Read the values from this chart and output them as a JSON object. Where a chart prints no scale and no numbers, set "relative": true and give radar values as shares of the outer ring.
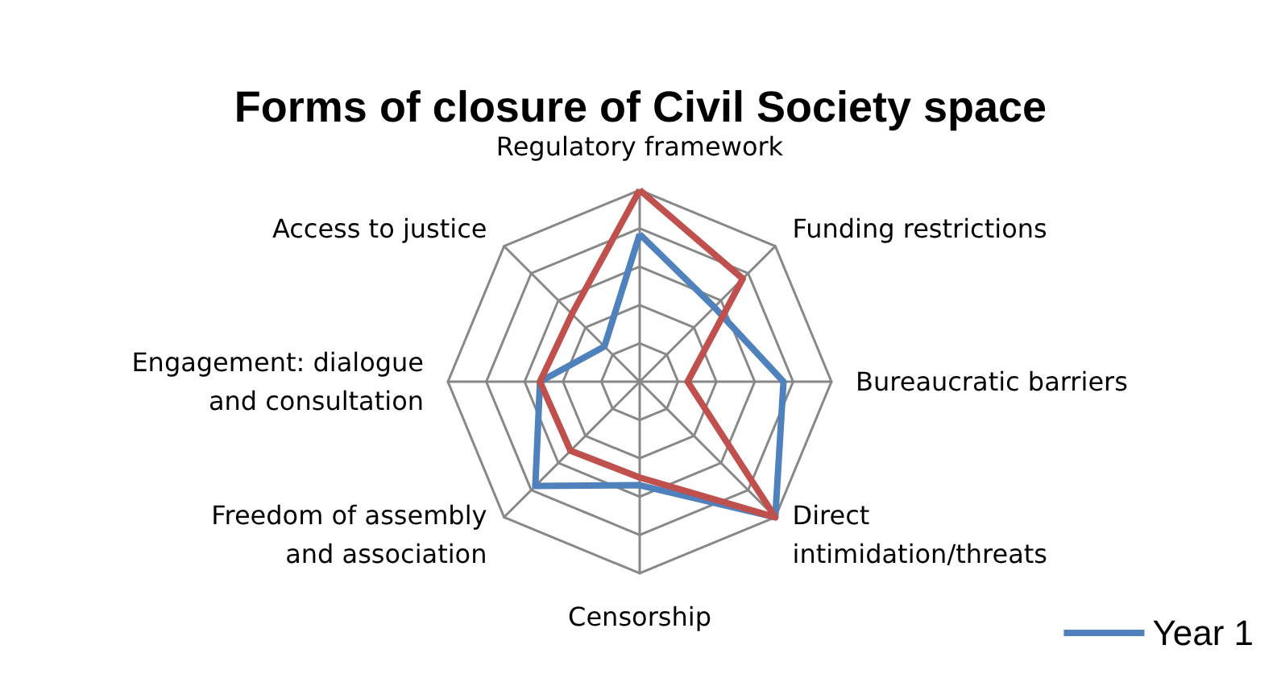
{
  "chart_data": {
    "type": "radar",
    "title": "Forms of closure of Civil Society space",
    "relative": true,
    "categories": [
      "Regulatory framework",
      "Funding restrictions",
      "Bureaucratic barriers",
      "Direct\nintimidation/threats",
      "Censorship",
      "Freedom of assembly\nand association",
      "Engagement: dialogue\nand consultation",
      "Access to justice"
    ],
    "series": [
      {
        "name": "Year 1",
        "color": "#4f81bd",
        "values": [
          0.77,
          0.55,
          0.75,
          1.0,
          0.54,
          0.77,
          0.52,
          0.26
        ]
      },
      {
        "color": "#c0504d",
        "values": [
          1.0,
          0.76,
          0.25,
          1.0,
          0.5,
          0.51,
          0.52,
          0.5
        ]
      }
    ],
    "legend": "bottom right",
    "grid": true,
    "marker": "none"
  }
}
